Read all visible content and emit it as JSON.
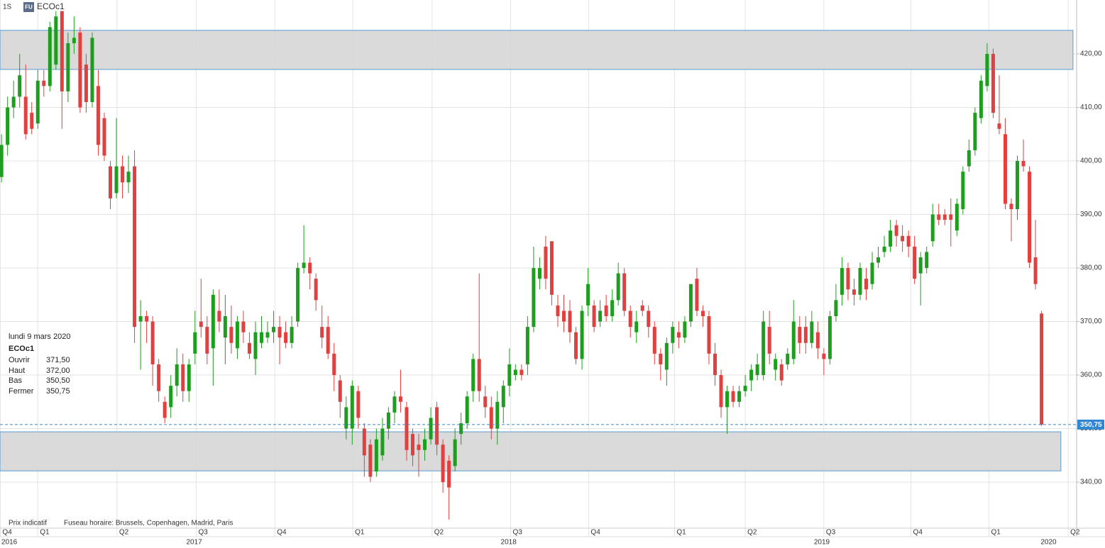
{
  "header": {
    "interval": "1S",
    "badge": "FU",
    "symbol": "ECOc1"
  },
  "footer": {
    "note": "Prix indicatif",
    "timezone": "Fuseau horaire: Brussels, Copenhagen, Madrid, Paris"
  },
  "tooltip": {
    "date": "lundi 9 mars 2020",
    "symbol": "ECOc1",
    "rows": [
      {
        "label": "Ouvrir",
        "value": "371,50"
      },
      {
        "label": "Haut",
        "value": "372,00"
      },
      {
        "label": "Bas",
        "value": "350,50"
      },
      {
        "label": "Fermer",
        "value": "350,75"
      }
    ]
  },
  "chart_data": {
    "type": "candlestick",
    "up_color": "#1e9e1e",
    "down_color": "#e04040",
    "grid": true,
    "ylim": [
      331.4,
      430.07
    ],
    "yticks": [
      {
        "value": 340,
        "label": "340,00"
      },
      {
        "value": 350,
        "label": "350,00"
      },
      {
        "value": 360,
        "label": "360,00"
      },
      {
        "value": 370,
        "label": "370,00"
      },
      {
        "value": 380,
        "label": "380,00"
      },
      {
        "value": 390,
        "label": "390,00"
      },
      {
        "value": 400,
        "label": "400,00"
      },
      {
        "value": 410,
        "label": "410,00"
      },
      {
        "value": 420,
        "label": "420,00"
      }
    ],
    "xlim": [
      -0.25,
      177.8
    ],
    "xticks": [
      {
        "value": -0.2,
        "label": "Q4"
      },
      {
        "value": 6.0,
        "label": "Q1"
      },
      {
        "value": 19.1,
        "label": "Q2"
      },
      {
        "value": 32.2,
        "label": "Q3"
      },
      {
        "value": 45.2,
        "label": "Q4"
      },
      {
        "value": 58.1,
        "label": "Q1"
      },
      {
        "value": 71.2,
        "label": "Q2"
      },
      {
        "value": 84.2,
        "label": "Q3"
      },
      {
        "value": 97.1,
        "label": "Q4"
      },
      {
        "value": 111.3,
        "label": "Q1"
      },
      {
        "value": 123,
        "label": "Q2"
      },
      {
        "value": 136,
        "label": "Q3"
      },
      {
        "value": 150.4,
        "label": "Q4"
      },
      {
        "value": 163.3,
        "label": "Q1"
      },
      {
        "value": 176.4,
        "label": "Q2"
      }
    ],
    "year_ticks": [
      {
        "value": -0.2,
        "label": "2016"
      },
      {
        "value": 32.2,
        "label": "2017"
      },
      {
        "value": 84.2,
        "label": "2018"
      },
      {
        "value": 136,
        "label": "2019"
      },
      {
        "value": 173.5,
        "label": "2020"
      }
    ],
    "zones": [
      {
        "top": 424.4,
        "bottom": 417.1,
        "x_end": 177.2
      },
      {
        "top": 349.4,
        "bottom": 342.1,
        "x_end": 175.2
      }
    ],
    "last_price": {
      "value": 350.75,
      "label": "350,75"
    },
    "open": [
      397,
      403,
      410,
      412,
      412,
      409,
      407,
      415,
      414,
      418,
      428,
      413,
      422,
      424,
      418,
      411,
      414,
      408,
      399,
      394,
      399,
      396,
      399,
      370,
      371,
      370,
      362,
      355,
      354,
      358,
      362,
      357,
      364,
      370,
      369,
      365,
      372,
      367,
      369,
      365,
      370,
      366,
      363,
      366,
      367,
      368,
      369,
      368,
      366,
      370,
      380,
      381,
      378,
      369,
      369,
      364,
      359,
      350,
      350,
      357,
      350,
      347,
      342,
      345,
      350,
      353,
      356,
      354,
      349,
      347,
      346,
      348,
      354,
      347,
      344,
      343,
      349,
      351,
      357,
      363,
      356,
      354,
      350,
      354,
      358,
      360,
      361,
      362,
      369,
      378,
      384,
      385,
      373,
      372,
      372,
      368,
      363,
      373,
      373,
      370,
      373,
      371,
      374,
      379,
      372,
      368,
      373,
      372,
      369,
      364,
      361,
      366,
      368,
      367,
      370,
      378,
      372,
      371,
      364,
      360,
      354,
      357,
      355,
      357,
      359,
      360,
      360,
      369,
      361,
      362,
      362,
      363,
      369,
      369,
      366,
      368,
      364,
      363,
      371,
      375,
      380,
      376,
      375,
      378,
      377,
      381,
      383,
      384,
      388,
      386,
      386,
      384,
      379,
      380,
      385,
      390,
      390,
      390,
      387,
      391,
      399,
      402,
      408,
      414,
      420,
      407,
      405,
      392,
      391,
      400,
      398,
      382,
      371.5
    ],
    "high": [
      405,
      412,
      415,
      420,
      418,
      411,
      417,
      417,
      426,
      428,
      428,
      424,
      427,
      425,
      420,
      424,
      417,
      409,
      400,
      408,
      401,
      401,
      402,
      374,
      372,
      371,
      363,
      356,
      360,
      365,
      364,
      363,
      372,
      378,
      371,
      376,
      376,
      375,
      373,
      371,
      372,
      368,
      370,
      371,
      370,
      372,
      371,
      370,
      371,
      381,
      388,
      382,
      379,
      373,
      371,
      366,
      360,
      356,
      359,
      358,
      351,
      348,
      350,
      352,
      354,
      357,
      361,
      355,
      350,
      349,
      350,
      354,
      355,
      348,
      345,
      350,
      353,
      357,
      364,
      379,
      358,
      356,
      357,
      359,
      365,
      362,
      362,
      371,
      384,
      382,
      386,
      385,
      375,
      375,
      374,
      369,
      373,
      380,
      374,
      374,
      375,
      376,
      381,
      380,
      373,
      372,
      374,
      373,
      370,
      365,
      367,
      370,
      370,
      371,
      377,
      380,
      373,
      372,
      366,
      361,
      358,
      358,
      358,
      360,
      362,
      364,
      372,
      372,
      364,
      363,
      365,
      374,
      371,
      371,
      372,
      370,
      365,
      372,
      377,
      382,
      381,
      378,
      381,
      380,
      383,
      384,
      386,
      389,
      389,
      388,
      387,
      386,
      383,
      384,
      392,
      392,
      391,
      393,
      393,
      399,
      404,
      410,
      416,
      422,
      421,
      416,
      408,
      393,
      401,
      404,
      399,
      389,
      372
    ],
    "low": [
      396,
      401,
      408,
      410,
      404,
      405,
      406,
      412,
      413,
      417,
      406,
      411,
      420,
      409,
      409,
      410,
      401,
      400,
      391,
      393,
      393,
      394,
      366,
      361,
      366,
      358,
      355,
      351,
      352,
      356,
      355,
      355,
      362,
      367,
      362,
      358,
      368,
      362,
      364,
      363,
      366,
      363,
      360,
      365,
      366,
      366,
      362,
      365,
      365,
      369,
      379,
      376,
      372,
      365,
      363,
      357,
      352,
      348,
      347,
      350,
      341,
      340,
      341,
      344,
      348,
      351,
      353,
      344,
      343,
      341,
      344,
      347,
      345,
      338,
      333,
      342,
      347,
      350,
      355,
      355,
      352,
      348,
      347,
      351,
      356,
      359,
      359,
      360,
      368,
      376,
      376,
      373,
      369,
      368,
      366,
      362,
      361,
      371,
      368,
      369,
      370,
      370,
      373,
      371,
      367,
      366,
      371,
      367,
      362,
      359,
      358,
      364,
      365,
      366,
      369,
      371,
      369,
      362,
      358,
      352,
      349,
      354,
      354,
      356,
      357,
      359,
      359,
      362,
      359,
      358,
      361,
      362,
      364,
      364,
      365,
      363,
      360,
      362,
      370,
      373,
      374,
      373,
      374,
      374,
      376,
      380,
      382,
      383,
      384,
      383,
      382,
      377,
      373,
      379,
      384,
      388,
      388,
      384,
      386,
      390,
      398,
      401,
      407,
      413,
      408,
      405,
      391,
      385,
      389,
      398,
      380,
      376,
      350.5
    ],
    "close": [
      403,
      410,
      412,
      416,
      405,
      406,
      415,
      414,
      425,
      427,
      413,
      422,
      423,
      410,
      411,
      423,
      403,
      401,
      393,
      399,
      396,
      398,
      369,
      371,
      370,
      362,
      357,
      352,
      358,
      362,
      357,
      362,
      368,
      369,
      364,
      375,
      370,
      371,
      366,
      370,
      368,
      364,
      368,
      368,
      368,
      369,
      367,
      366,
      369,
      380,
      381,
      379,
      374,
      367,
      364,
      360,
      355,
      354,
      358,
      352,
      345,
      341,
      348,
      350,
      353,
      356,
      355,
      346,
      345,
      346,
      348,
      352,
      347,
      340,
      339,
      348,
      351,
      356,
      363,
      357,
      354,
      350,
      355,
      358,
      362,
      361,
      360,
      369,
      380,
      380,
      378,
      375,
      371,
      370,
      368,
      363,
      372,
      377,
      369,
      372,
      371,
      374,
      379,
      372,
      369,
      370,
      372,
      369,
      364,
      362,
      366,
      369,
      367,
      370,
      377,
      372,
      371,
      364,
      360,
      354,
      357,
      355,
      357,
      358,
      361,
      362,
      370,
      364,
      363,
      359,
      364,
      370,
      366,
      366,
      370,
      365,
      363,
      371,
      374,
      380,
      376,
      375,
      380,
      376,
      381,
      382,
      384,
      387,
      386,
      385,
      384,
      378,
      382,
      383,
      390,
      389,
      389,
      389,
      392,
      398,
      402,
      409,
      415,
      420,
      409,
      406,
      392,
      391,
      400,
      399,
      381,
      377,
      350.75
    ]
  }
}
